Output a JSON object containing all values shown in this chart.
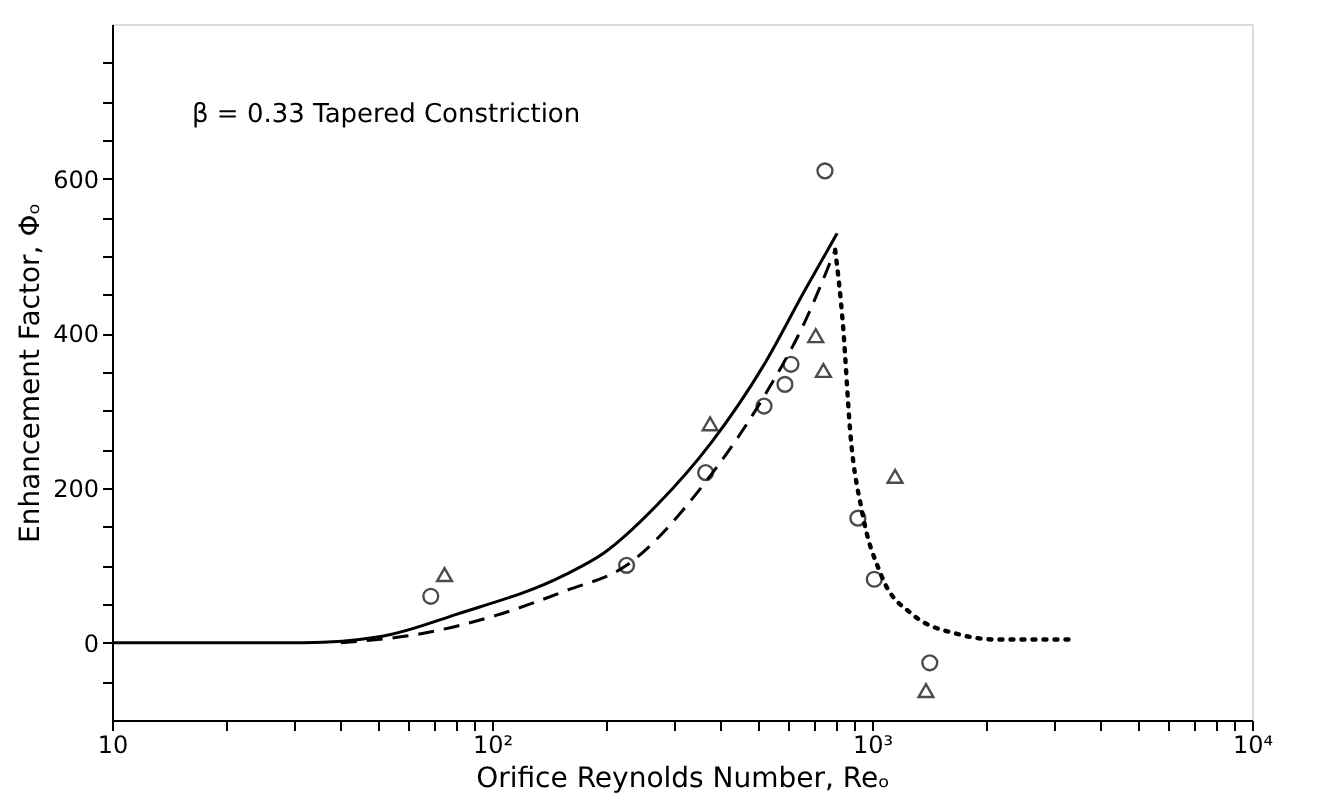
{
  "chart_data": {
    "type": "scatter",
    "xlabel": "Orifice Reynolds Number, Reₒ",
    "ylabel": "Enhancement Factor, Φₒ",
    "annotations": [
      "β = 0.33  Tapered Constriction"
    ],
    "log": "x",
    "grid": false,
    "xlim": [
      10,
      10000
    ],
    "ylim": [
      -100,
      800
    ],
    "xticks": [
      {
        "value": 10,
        "label": "10"
      },
      {
        "value": 20,
        "label": null
      },
      {
        "value": 30,
        "label": null
      },
      {
        "value": 40,
        "label": null
      },
      {
        "value": 50,
        "label": null
      },
      {
        "value": 60,
        "label": null
      },
      {
        "value": 70,
        "label": null
      },
      {
        "value": 80,
        "label": null
      },
      {
        "value": 90,
        "label": null
      },
      {
        "value": 100,
        "label": "10²"
      },
      {
        "value": 200,
        "label": null
      },
      {
        "value": 300,
        "label": null
      },
      {
        "value": 400,
        "label": null
      },
      {
        "value": 500,
        "label": null
      },
      {
        "value": 600,
        "label": null
      },
      {
        "value": 700,
        "label": null
      },
      {
        "value": 800,
        "label": null
      },
      {
        "value": 900,
        "label": null
      },
      {
        "value": 1000,
        "label": "10³"
      },
      {
        "value": 2000,
        "label": null
      },
      {
        "value": 3000,
        "label": null
      },
      {
        "value": 4000,
        "label": null
      },
      {
        "value": 5000,
        "label": null
      },
      {
        "value": 6000,
        "label": null
      },
      {
        "value": 7000,
        "label": null
      },
      {
        "value": 8000,
        "label": null
      },
      {
        "value": 9000,
        "label": null
      },
      {
        "value": 10000,
        "label": "10⁴"
      }
    ],
    "yticks": [
      {
        "value": -50,
        "label": null
      },
      0,
      {
        "value": 50,
        "label": null
      },
      {
        "value": 100,
        "label": null
      },
      {
        "value": 150,
        "label": null
      },
      200,
      {
        "value": 250,
        "label": null
      },
      {
        "value": 300,
        "label": null
      },
      {
        "value": 350,
        "label": null
      },
      400,
      {
        "value": 450,
        "label": null
      },
      {
        "value": 500,
        "label": null
      },
      {
        "value": 550,
        "label": null
      },
      600,
      {
        "value": 650,
        "label": null
      },
      {
        "value": 700,
        "label": null
      },
      {
        "value": 750,
        "label": null
      }
    ],
    "series": [
      {
        "type": "line",
        "line_style": "solid",
        "marker": "none",
        "color": "#000000",
        "x": [
          10,
          32,
          51,
          81,
          156,
          197,
          273,
          378,
          525,
          663,
          809
        ],
        "values": [
          0,
          0,
          8,
          37,
          88,
          116,
          179,
          259,
          363,
          454,
          529
        ]
      },
      {
        "type": "line",
        "line_style": "dashed",
        "marker": "none",
        "color": "#000000",
        "x": [
          40,
          64,
          102,
          156,
          226,
          361,
          525,
          663,
          800
        ],
        "values": [
          0,
          11,
          35,
          67,
          100,
          205,
          322,
          413,
          508
        ]
      },
      {
        "type": "line",
        "line_style": "dotted",
        "marker": "none",
        "color": "#000000",
        "x": [
          800,
          838,
          877,
          942,
          1056,
          1274,
          1686,
          2133,
          3397
        ],
        "values": [
          508,
          413,
          271,
          169,
          88,
          37,
          11,
          4,
          4
        ]
      },
      {
        "marker": "circle",
        "color": "#000000",
        "x": [
          69,
          226,
          365,
          520,
          590,
          612,
          752,
          918,
          1014,
          1419
        ],
        "values": [
          60,
          100,
          220,
          306,
          334,
          360,
          610,
          161,
          82,
          -26
        ]
      },
      {
        "marker": "triangle",
        "color": "#000000",
        "x": [
          75,
          375,
          711,
          745,
          1150,
          1387
        ],
        "values": [
          88,
          283,
          397,
          352,
          215,
          -62
        ]
      }
    ]
  }
}
